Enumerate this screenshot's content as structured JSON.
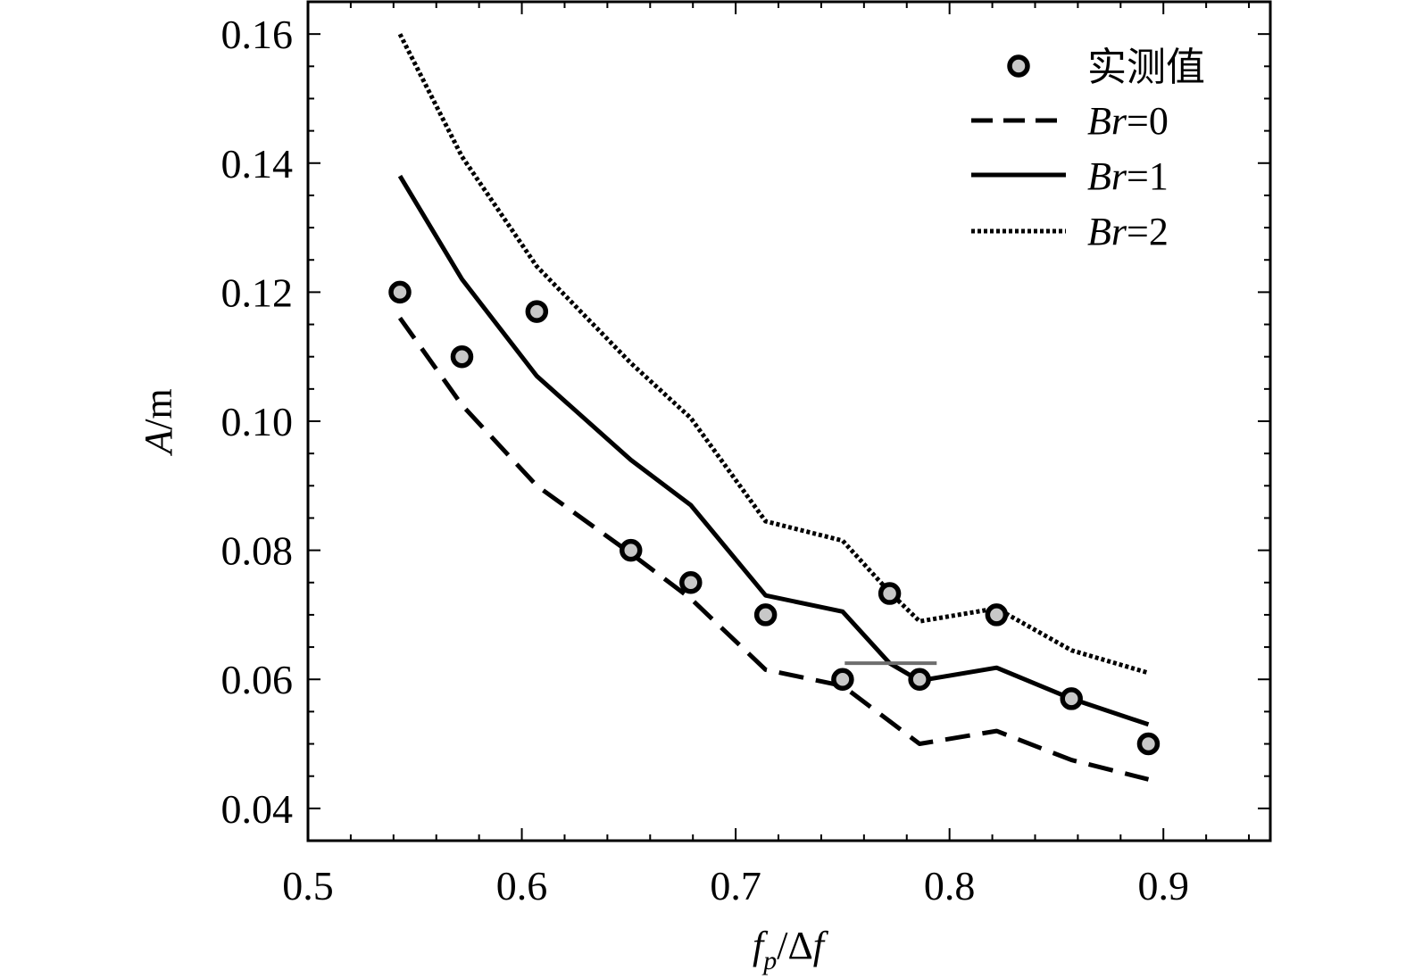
{
  "chart_data": {
    "type": "line",
    "xlabel": {
      "f": "f",
      "sub": "p",
      "slash": "/Δ",
      "f2": "f"
    },
    "ylabel": {
      "var": "A",
      "unit": "/m"
    },
    "xlim": [
      0.5,
      0.95
    ],
    "ylim": [
      0.035,
      0.165
    ],
    "x_ticks": [
      0.5,
      0.6,
      0.7,
      0.8,
      0.9
    ],
    "x_tick_labels": [
      "0.5",
      "0.6",
      "0.7",
      "0.8",
      "0.9"
    ],
    "y_ticks": [
      0.04,
      0.06,
      0.08,
      0.1,
      0.12,
      0.14,
      0.16
    ],
    "y_tick_labels": [
      "0.04",
      "0.06",
      "0.08",
      "0.10",
      "0.12",
      "0.14",
      "0.16"
    ],
    "grid": false,
    "legend_position": "top-right",
    "series": [
      {
        "name": "实测值",
        "style": "markers",
        "x": [
          0.543,
          0.572,
          0.607,
          0.651,
          0.679,
          0.714,
          0.75,
          0.772,
          0.786,
          0.822,
          0.857,
          0.893
        ],
        "y": [
          0.12,
          0.11,
          0.117,
          0.08,
          0.075,
          0.07,
          0.06,
          0.0733,
          0.06,
          0.07,
          0.057,
          0.05
        ]
      },
      {
        "name": "Br=0",
        "name_parts": {
          "var": "Br",
          "rest": "=0"
        },
        "style": "dashed",
        "x": [
          0.543,
          0.572,
          0.607,
          0.651,
          0.679,
          0.714,
          0.75,
          0.786,
          0.822,
          0.857,
          0.893
        ],
        "y": [
          0.116,
          0.1025,
          0.09,
          0.0795,
          0.0725,
          0.0615,
          0.059,
          0.05,
          0.052,
          0.0475,
          0.0445
        ]
      },
      {
        "name": "Br=1",
        "name_parts": {
          "var": "Br",
          "rest": "=1"
        },
        "style": "solid",
        "x": [
          0.543,
          0.572,
          0.607,
          0.651,
          0.679,
          0.714,
          0.75,
          0.772,
          0.786,
          0.822,
          0.857,
          0.893
        ],
        "y": [
          0.138,
          0.122,
          0.107,
          0.094,
          0.087,
          0.073,
          0.0705,
          0.0625,
          0.0598,
          0.0618,
          0.057,
          0.053
        ]
      },
      {
        "name": "Br=2",
        "name_parts": {
          "var": "Br",
          "rest": "=2"
        },
        "style": "dotted",
        "x": [
          0.543,
          0.572,
          0.607,
          0.651,
          0.679,
          0.714,
          0.75,
          0.772,
          0.786,
          0.822,
          0.857,
          0.893
        ],
        "y": [
          0.16,
          0.141,
          0.124,
          0.109,
          0.1005,
          0.0845,
          0.0815,
          0.0735,
          0.069,
          0.071,
          0.0645,
          0.061
        ]
      }
    ],
    "annotation_segment": {
      "x": [
        0.751,
        0.794
      ],
      "y": 0.0625
    },
    "colors": {
      "marker_fill": "#c8c8c8",
      "stroke": "#000000",
      "annotation": "#6e6e6e"
    }
  }
}
